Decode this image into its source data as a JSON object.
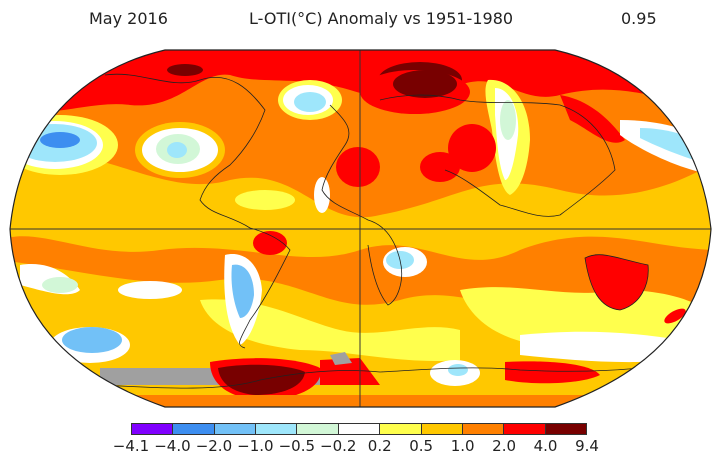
{
  "header": {
    "date": "May 2016",
    "title": "L-OTI(°C) Anomaly vs 1951-1980",
    "global_mean": "0.95"
  },
  "legend": {
    "bins": [
      {
        "from": "−4.1",
        "to": "−4.0",
        "color": "#8000ff"
      },
      {
        "from": "−4.0",
        "to": "−2.0",
        "color": "#3d8ef0"
      },
      {
        "from": "−2.0",
        "to": "−1.0",
        "color": "#72c1f7"
      },
      {
        "from": "−1.0",
        "to": "−0.5",
        "color": "#9ee6fb"
      },
      {
        "from": "−0.5",
        "to": "−0.2",
        "color": "#d2f7d7"
      },
      {
        "from": "−0.2",
        "to": "0.2",
        "color": "#ffffff"
      },
      {
        "from": "0.2",
        "to": "0.5",
        "color": "#ffff4d"
      },
      {
        "from": "0.5",
        "to": "1.0",
        "color": "#ffc800"
      },
      {
        "from": "1.0",
        "to": "2.0",
        "color": "#ff8000"
      },
      {
        "from": "2.0",
        "to": "4.0",
        "color": "#ff0000"
      },
      {
        "from": "4.0",
        "to": "9.4",
        "color": "#780000"
      }
    ],
    "tick_labels": [
      "−4.1",
      "−4.0",
      "−2.0",
      "−1.0",
      "−0.5",
      "−0.2",
      "0.2",
      "0.5",
      "1.0",
      "2.0",
      "4.0",
      "9.4"
    ],
    "missing_color": "#a0a0a0"
  },
  "map": {
    "projection": "Robinson",
    "base_color": "#ff8000",
    "features": [
      {
        "region": "Arctic / Greenland / N. Canada",
        "anomaly_bin": "2.0 to 4.0"
      },
      {
        "region": "Northern Europe / W. Russia",
        "anomaly_bin": "4.0 to 9.4"
      },
      {
        "region": "Central USA",
        "anomaly_bin": "-1.0 to -0.5"
      },
      {
        "region": "NE Pacific",
        "anomaly_bin": "-4.0 to -2.0"
      },
      {
        "region": "NW Pacific",
        "anomaly_bin": "-2.0 to -1.0"
      },
      {
        "region": "Central Siberia",
        "anomaly_bin": "-0.5 to -0.2"
      },
      {
        "region": "Middle East",
        "anomaly_bin": "2.0 to 4.0"
      },
      {
        "region": "NE Brazil",
        "anomaly_bin": "2.0 to 4.0"
      },
      {
        "region": "Argentina",
        "anomaly_bin": "-2.0 to -1.0"
      },
      {
        "region": "Australia",
        "anomaly_bin": "2.0 to 4.0"
      },
      {
        "region": "West Antarctica",
        "anomaly_bin": "4.0 to 9.4"
      },
      {
        "region": "Antarctic Pacific sector",
        "anomaly_bin": "missing"
      }
    ]
  }
}
